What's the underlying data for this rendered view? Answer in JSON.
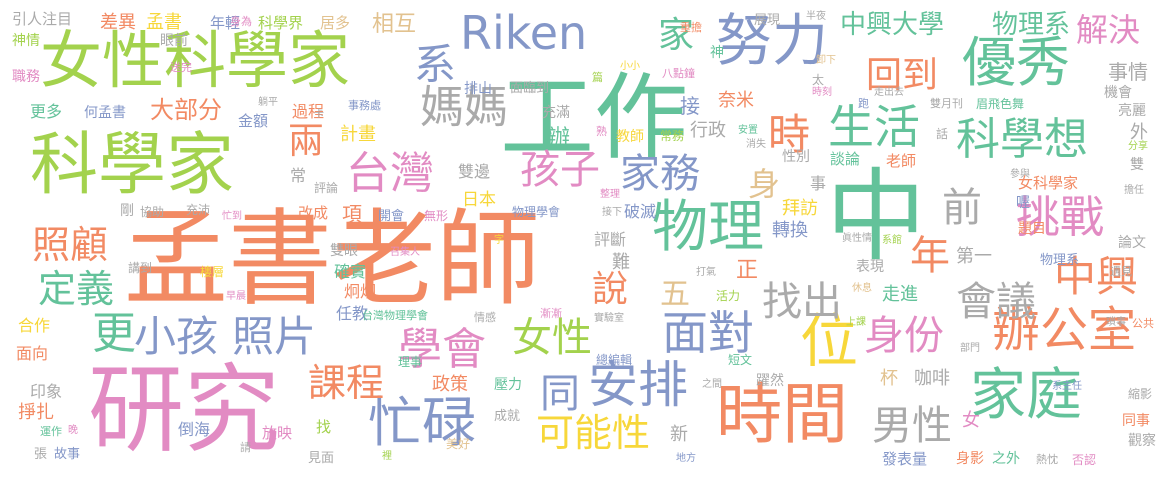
{
  "colors": {
    "orange": "#f28a63",
    "green": "#63c29a",
    "blue": "#8497c8",
    "pink": "#e28bc3",
    "lime": "#a3d24d",
    "yellow": "#f7d73a",
    "tan": "#e2c28f",
    "gray": "#aaaaaa"
  },
  "words": [
    {
      "text": "孟書老師"
    },
    {
      "text": "研究"
    },
    {
      "text": "工作"
    },
    {
      "text": "中"
    },
    {
      "text": "科學家"
    },
    {
      "text": "女性科學家"
    },
    {
      "text": "時間"
    },
    {
      "text": "Riken"
    },
    {
      "text": "努力"
    },
    {
      "text": "物理"
    },
    {
      "text": "優秀"
    },
    {
      "text": "家庭"
    },
    {
      "text": "位"
    },
    {
      "text": "台灣"
    },
    {
      "text": "孩子"
    },
    {
      "text": "生活"
    },
    {
      "text": "科學想"
    },
    {
      "text": "挑戰"
    },
    {
      "text": "辦公室"
    },
    {
      "text": "媽媽"
    },
    {
      "text": "家務"
    },
    {
      "text": "安排"
    },
    {
      "text": "忙碌"
    },
    {
      "text": "面對"
    },
    {
      "text": "學會"
    },
    {
      "text": "小孩"
    },
    {
      "text": "照片"
    },
    {
      "text": "身份"
    },
    {
      "text": "會議"
    },
    {
      "text": "中興"
    },
    {
      "text": "照顧"
    },
    {
      "text": "定義"
    },
    {
      "text": "課程"
    },
    {
      "text": "可能性"
    },
    {
      "text": "女性"
    },
    {
      "text": "男性"
    },
    {
      "text": "中興大學"
    },
    {
      "text": "物理系"
    },
    {
      "text": "解決"
    },
    {
      "text": "回到"
    },
    {
      "text": "家"
    },
    {
      "text": "系"
    },
    {
      "text": "時"
    },
    {
      "text": "年"
    },
    {
      "text": "前"
    },
    {
      "text": "找出"
    },
    {
      "text": "更"
    },
    {
      "text": "說"
    },
    {
      "text": "同"
    },
    {
      "text": "五"
    },
    {
      "text": "身"
    },
    {
      "text": "兩"
    },
    {
      "text": "事情"
    },
    {
      "text": "科學界"
    },
    {
      "text": "年輕"
    },
    {
      "text": "居多"
    },
    {
      "text": "相互"
    },
    {
      "text": "引人注目"
    },
    {
      "text": "差異"
    },
    {
      "text": "孟書"
    },
    {
      "text": "身為"
    },
    {
      "text": "眼前"
    },
    {
      "text": "神情"
    },
    {
      "text": "職務"
    },
    {
      "text": "送完"
    },
    {
      "text": "更多"
    },
    {
      "text": "何孟書"
    },
    {
      "text": "大部分"
    },
    {
      "text": "過程"
    },
    {
      "text": "金額"
    },
    {
      "text": "計畫"
    },
    {
      "text": "排山"
    },
    {
      "text": "面臨到"
    },
    {
      "text": "充滿"
    },
    {
      "text": "辦"
    },
    {
      "text": "接"
    },
    {
      "text": "奈米"
    },
    {
      "text": "行政"
    },
    {
      "text": "教師"
    },
    {
      "text": "常務"
    },
    {
      "text": "熟"
    },
    {
      "text": "展現"
    },
    {
      "text": "半夜"
    },
    {
      "text": "重擔"
    },
    {
      "text": "八點鐘"
    },
    {
      "text": "小小"
    },
    {
      "text": "篇"
    },
    {
      "text": "神"
    },
    {
      "text": "卸下"
    },
    {
      "text": "太"
    },
    {
      "text": "時刻"
    },
    {
      "text": "跑"
    },
    {
      "text": "走出去"
    },
    {
      "text": "機會"
    },
    {
      "text": "雙月刊"
    },
    {
      "text": "眉飛色舞"
    },
    {
      "text": "亮麗"
    },
    {
      "text": "外"
    },
    {
      "text": "分享"
    },
    {
      "text": "雙"
    },
    {
      "text": "擔任"
    },
    {
      "text": "參與"
    },
    {
      "text": "女科學家"
    },
    {
      "text": "老師"
    },
    {
      "text": "事"
    },
    {
      "text": "性別"
    },
    {
      "text": "談論"
    },
    {
      "text": "話"
    },
    {
      "text": "消失"
    },
    {
      "text": "安置"
    },
    {
      "text": "整理"
    },
    {
      "text": "破滅"
    },
    {
      "text": "物理學會"
    },
    {
      "text": "接下"
    },
    {
      "text": "日本"
    },
    {
      "text": "項"
    },
    {
      "text": "改成"
    },
    {
      "text": "開會"
    },
    {
      "text": "無形"
    },
    {
      "text": "雙邊"
    },
    {
      "text": "評論"
    },
    {
      "text": "常"
    },
    {
      "text": "剛"
    },
    {
      "text": "協助"
    },
    {
      "text": "充沛"
    },
    {
      "text": "忙到"
    },
    {
      "text": "卡"
    },
    {
      "text": "事務處"
    },
    {
      "text": "躺平"
    },
    {
      "text": "拜訪"
    },
    {
      "text": "轉換"
    },
    {
      "text": "喔"
    },
    {
      "text": "題目"
    },
    {
      "text": "第一"
    },
    {
      "text": "物理系"
    },
    {
      "text": "論文"
    },
    {
      "text": "遇見"
    },
    {
      "text": "系館"
    },
    {
      "text": "眞性情"
    },
    {
      "text": "表現"
    },
    {
      "text": "休息"
    },
    {
      "text": "走進"
    },
    {
      "text": "正"
    },
    {
      "text": "活力"
    },
    {
      "text": "打氣"
    },
    {
      "text": "評斷"
    },
    {
      "text": "難"
    },
    {
      "text": "字"
    },
    {
      "text": "召集人"
    },
    {
      "text": "確實"
    },
    {
      "text": "雙眼"
    },
    {
      "text": "炯炯"
    },
    {
      "text": "樓層"
    },
    {
      "text": "講到"
    },
    {
      "text": "任教"
    },
    {
      "text": "早晨"
    },
    {
      "text": "台灣物理學會"
    },
    {
      "text": "情感"
    },
    {
      "text": "漸漸"
    },
    {
      "text": "實驗室"
    },
    {
      "text": "總編輯"
    },
    {
      "text": "理事"
    },
    {
      "text": "政策"
    },
    {
      "text": "杯"
    },
    {
      "text": "咖啡"
    },
    {
      "text": "上課"
    },
    {
      "text": "部門"
    },
    {
      "text": "公共"
    },
    {
      "text": "瑣事"
    },
    {
      "text": "合作"
    },
    {
      "text": "面向"
    },
    {
      "text": "印象"
    },
    {
      "text": "掙扎"
    },
    {
      "text": "運作"
    },
    {
      "text": "晚"
    },
    {
      "text": "張"
    },
    {
      "text": "故事"
    },
    {
      "text": "倒海"
    },
    {
      "text": "請"
    },
    {
      "text": "放映"
    },
    {
      "text": "見面"
    },
    {
      "text": "找"
    },
    {
      "text": "裡"
    },
    {
      "text": "美好"
    },
    {
      "text": "成就"
    },
    {
      "text": "壓力"
    },
    {
      "text": "之間"
    },
    {
      "text": "新"
    },
    {
      "text": "地方"
    },
    {
      "text": "短文"
    },
    {
      "text": "躍然"
    },
    {
      "text": "系主任"
    },
    {
      "text": "縮影"
    },
    {
      "text": "同事"
    },
    {
      "text": "觀察"
    },
    {
      "text": "發表量"
    },
    {
      "text": "身影"
    },
    {
      "text": "之外"
    },
    {
      "text": "熱忱"
    },
    {
      "text": "否認"
    },
    {
      "text": "女"
    }
  ]
}
